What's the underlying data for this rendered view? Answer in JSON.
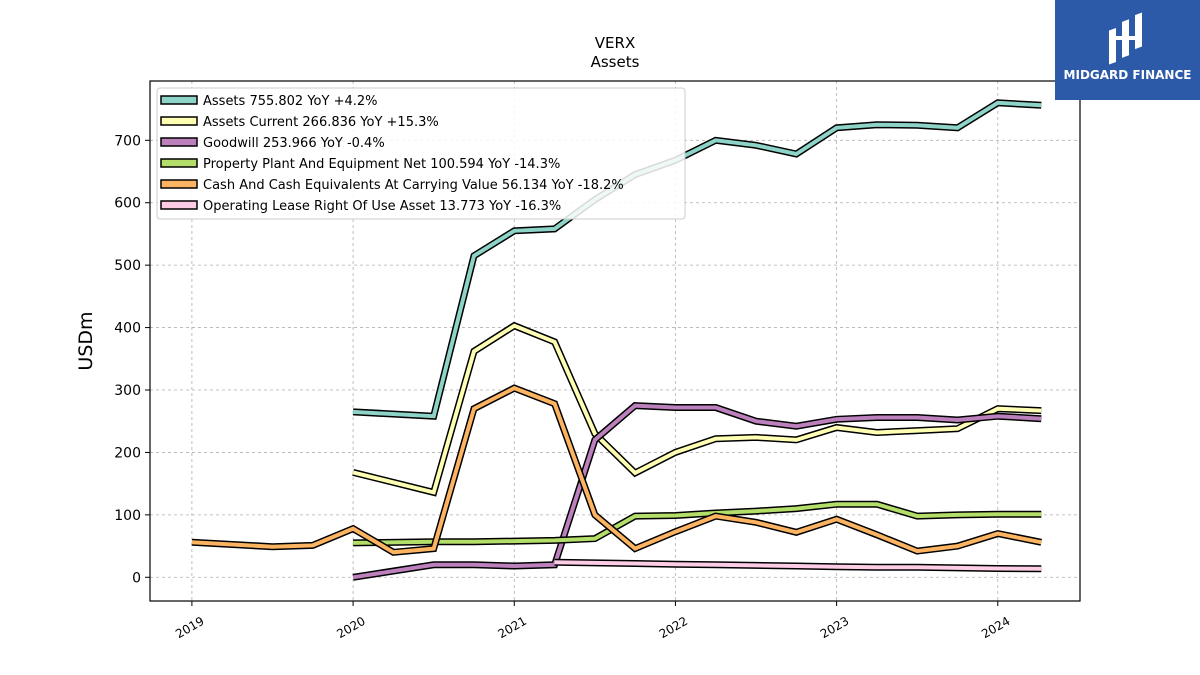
{
  "logo": {
    "text": "MIDGARD FINANCE",
    "color": "#2c5aa8"
  },
  "chart_data": {
    "type": "line",
    "title": "VERX",
    "subtitle": "Assets",
    "ylabel": "USDm",
    "xlabel": "",
    "xlim": [
      2018.74,
      2024.51
    ],
    "ylim": [
      -38,
      795
    ],
    "xticks": [
      2019,
      2020,
      2021,
      2022,
      2023,
      2024
    ],
    "xtick_labels": [
      "2019",
      "2020",
      "2021",
      "2022",
      "2023",
      "2024"
    ],
    "yticks": [
      0,
      100,
      200,
      300,
      400,
      500,
      600,
      700
    ],
    "yticks_labels": [
      "0",
      "100",
      "200",
      "300",
      "400",
      "500",
      "600",
      "700"
    ],
    "grid": true,
    "legend_position": "top-left",
    "series": [
      {
        "name": "Assets",
        "legend_label": "Assets  755.802 YoY +4.2%",
        "color": "#8dd3c7",
        "x": [
          2020.0,
          2020.5,
          2020.75,
          2021.0,
          2021.25,
          2021.5,
          2021.75,
          2022.0,
          2022.25,
          2022.5,
          2022.75,
          2023.0,
          2023.25,
          2023.5,
          2023.75,
          2024.0,
          2024.27
        ],
        "y": [
          265,
          258,
          515,
          555,
          558,
          605,
          645,
          668,
          700,
          692,
          678,
          720,
          725,
          724,
          720,
          760,
          756
        ]
      },
      {
        "name": "Assets Current",
        "legend_label": "Assets Current  266.836 YoY +15.3%",
        "color": "#ffffb3",
        "x": [
          2020.0,
          2020.5,
          2020.75,
          2021.0,
          2021.25,
          2021.5,
          2021.75,
          2022.0,
          2022.25,
          2022.5,
          2022.75,
          2023.0,
          2023.25,
          2023.5,
          2023.75,
          2024.0,
          2024.27
        ],
        "y": [
          168,
          136,
          362,
          403,
          377,
          230,
          167,
          200,
          222,
          224,
          220,
          240,
          232,
          235,
          238,
          270,
          267
        ]
      },
      {
        "name": "Goodwill",
        "legend_label": "Goodwill  253.966 YoY -0.4%",
        "color": "#bc80bd",
        "x": [
          2020.0,
          2020.5,
          2020.75,
          2021.0,
          2021.25,
          2021.5,
          2021.75,
          2022.0,
          2022.25,
          2022.5,
          2022.75,
          2023.0,
          2023.25,
          2023.5,
          2023.75,
          2024.0,
          2024.27
        ],
        "y": [
          0,
          20,
          20,
          18,
          20,
          220,
          275,
          272,
          272,
          250,
          242,
          253,
          256,
          256,
          252,
          258,
          254
        ]
      },
      {
        "name": "Property Plant And Equipment Net",
        "legend_label": "Property Plant And Equipment Net  100.594 YoY -14.3%",
        "color": "#b3de69",
        "x": [
          2020.0,
          2020.5,
          2020.75,
          2021.0,
          2021.25,
          2021.5,
          2021.75,
          2022.0,
          2022.25,
          2022.5,
          2022.75,
          2023.0,
          2023.25,
          2023.5,
          2023.75,
          2024.0,
          2024.27
        ],
        "y": [
          55,
          57,
          57,
          58,
          59,
          62,
          98,
          99,
          103,
          106,
          110,
          117,
          117,
          98,
          100,
          101,
          101
        ]
      },
      {
        "name": "Cash And Cash Equivalents At Carrying Value",
        "legend_label": "Cash And Cash Equivalents At Carrying Value  56.134 YoY -18.2%",
        "color": "#fdb462",
        "x": [
          2019.0,
          2019.5,
          2019.75,
          2020.0,
          2020.25,
          2020.5,
          2020.75,
          2021.0,
          2021.25,
          2021.5,
          2021.75,
          2022.0,
          2022.25,
          2022.5,
          2022.75,
          2023.0,
          2023.25,
          2023.5,
          2023.75,
          2024.0,
          2024.27
        ],
        "y": [
          56,
          49,
          51,
          78,
          40,
          46,
          270,
          303,
          278,
          100,
          46,
          73,
          98,
          88,
          72,
          93,
          68,
          42,
          50,
          70,
          56
        ]
      },
      {
        "name": "Operating Lease Right Of Use Asset",
        "legend_label": "Operating Lease Right Of Use Asset  13.773 YoY -16.3%",
        "color": "#fccde5",
        "x": [
          2021.25,
          2021.5,
          2021.75,
          2022.0,
          2022.25,
          2022.5,
          2022.75,
          2023.0,
          2023.25,
          2023.5,
          2023.75,
          2024.0,
          2024.27
        ],
        "y": [
          24,
          23,
          22,
          21,
          20,
          19,
          18,
          17,
          16,
          16,
          15,
          14,
          13.8
        ]
      }
    ]
  }
}
